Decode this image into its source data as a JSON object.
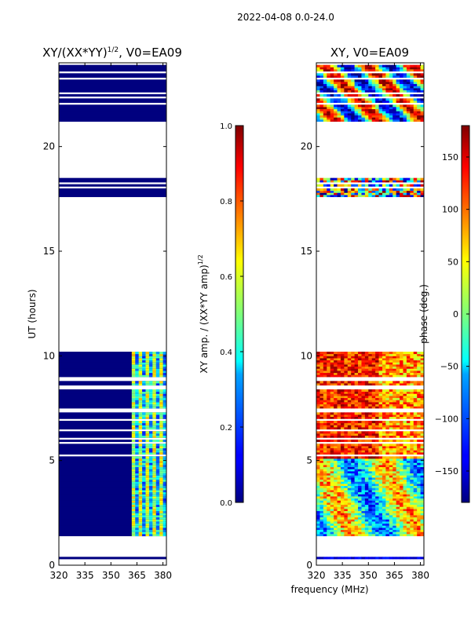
{
  "chart_data": [
    {
      "type": "heatmap",
      "suptitle": "2022-04-08 0.0-24.0",
      "title_base": "XY/(XX*YY)",
      "title_sup": "1/2",
      "title_suffix": ", V0=EA09",
      "xlabel": "frequency (MHz)",
      "ylabel": "UT (hours)",
      "xlim": [
        320,
        382
      ],
      "ylim": [
        0,
        24
      ],
      "xticks": [
        "320",
        "335",
        "350",
        "365",
        "380"
      ],
      "xtick_values": [
        320,
        335,
        350,
        365,
        380
      ],
      "yticks": [
        "0",
        "5",
        "10",
        "15",
        "20"
      ],
      "ytick_values": [
        0,
        5,
        10,
        15,
        20
      ],
      "data_time_ranges": [
        [
          0.3,
          0.4
        ],
        [
          1.3,
          10.2
        ],
        [
          17.6,
          18.5
        ],
        [
          21.2,
          23.9
        ]
      ],
      "colorbar": {
        "label_base": "XY amp. / (XX*YY amp)",
        "label_sup": "1/2",
        "range": [
          0.0,
          1.0
        ],
        "ticks": [
          "0.0",
          "0.2",
          "0.4",
          "0.6",
          "0.8",
          "1.0"
        ],
        "tick_values": [
          0.0,
          0.2,
          0.4,
          0.6,
          0.8,
          1.0
        ]
      }
    },
    {
      "type": "heatmap",
      "title": "XY, V0=EA09",
      "xlim": [
        320,
        382
      ],
      "ylim": [
        0,
        24
      ],
      "xticks": [
        "320",
        "335",
        "350",
        "365",
        "380"
      ],
      "xtick_values": [
        320,
        335,
        350,
        365,
        380
      ],
      "yticks": [
        "0",
        "5",
        "10",
        "15",
        "20"
      ],
      "ytick_values": [
        0,
        5,
        10,
        15,
        20
      ],
      "data_time_ranges": [
        [
          0.3,
          0.4
        ],
        [
          1.3,
          10.2
        ],
        [
          17.6,
          18.5
        ],
        [
          21.2,
          23.9
        ]
      ],
      "colorbar": {
        "label": "phase (deg.)",
        "range": [
          -180,
          180
        ],
        "ticks": [
          "−150",
          "−100",
          "−50",
          "0",
          "50",
          "100",
          "150"
        ],
        "tick_values": [
          -150,
          -100,
          -50,
          0,
          50,
          100,
          150
        ]
      }
    }
  ],
  "colors": {
    "jet_low": "#00007f",
    "jet_blue": "#0000ff",
    "jet_cyan": "#00ffff",
    "jet_yellow": "#ffff00",
    "jet_red": "#ff0000",
    "jet_high": "#7f0000"
  }
}
